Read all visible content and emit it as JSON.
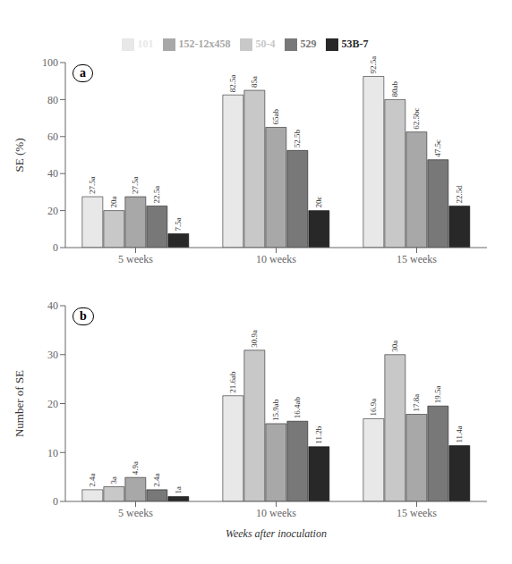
{
  "chart_data": [
    {
      "type": "bar",
      "title": "a",
      "categories": [
        "5 weeks",
        "10 weeks",
        "15 weeks"
      ],
      "ylabel": "SE (%)",
      "ylim": [
        0,
        100
      ],
      "yticks": [
        0,
        20,
        40,
        60,
        80,
        100
      ],
      "legend": "top",
      "grid": false,
      "data_labels": true,
      "series": [
        {
          "name": "101",
          "color": "#e8e8e8",
          "values": [
            27.5,
            82.5,
            92.5
          ],
          "value_labels": [
            "27.5a",
            "82.5a",
            "92.5a"
          ]
        },
        {
          "name": "50-4",
          "color": "#c8c8c8",
          "values": [
            20.0,
            85.0,
            80.0
          ],
          "value_labels": [
            "20a",
            "85a",
            "80ab"
          ]
        },
        {
          "name": "152-12x458",
          "color": "#a8a8a8",
          "values": [
            27.5,
            65.0,
            62.5
          ],
          "value_labels": [
            "27.5a",
            "65ab",
            "62.5bc"
          ]
        },
        {
          "name": "529",
          "color": "#787878",
          "values": [
            22.5,
            52.5,
            47.5
          ],
          "value_labels": [
            "22.5a",
            "52.5b",
            "47.5c"
          ]
        },
        {
          "name": "53B-7",
          "color": "#282828",
          "values": [
            7.5,
            20.0,
            22.5
          ],
          "value_labels": [
            "7.5a",
            "20c",
            "22.5d"
          ]
        }
      ]
    },
    {
      "type": "bar",
      "title": "b",
      "categories": [
        "5 weeks",
        "10 weeks",
        "15 weeks"
      ],
      "xlabel": "Weeks after inoculation",
      "ylabel": "Number of SE",
      "ylim": [
        0,
        40
      ],
      "yticks": [
        0,
        10,
        20,
        30,
        40
      ],
      "grid": false,
      "data_labels": true,
      "series": [
        {
          "name": "101",
          "color": "#e8e8e8",
          "values": [
            2.4,
            21.6,
            16.9
          ],
          "value_labels": [
            "2.4a",
            "21.6ab",
            "16.9a"
          ]
        },
        {
          "name": "50-4",
          "color": "#c8c8c8",
          "values": [
            3.0,
            30.9,
            30.0
          ],
          "value_labels": [
            "3a",
            "30.9a",
            "30a"
          ]
        },
        {
          "name": "152-12x458",
          "color": "#a8a8a8",
          "values": [
            4.9,
            15.9,
            17.8
          ],
          "value_labels": [
            "4.9a",
            "15.9ab",
            "17.8a"
          ]
        },
        {
          "name": "529",
          "color": "#787878",
          "values": [
            2.4,
            16.4,
            19.5
          ],
          "value_labels": [
            "2.4a",
            "16.4ab",
            "19.5a"
          ]
        },
        {
          "name": "53B-7",
          "color": "#282828",
          "values": [
            1.0,
            11.2,
            11.4
          ],
          "value_labels": [
            "1a",
            "11.2b",
            "11.4a"
          ]
        }
      ]
    }
  ]
}
